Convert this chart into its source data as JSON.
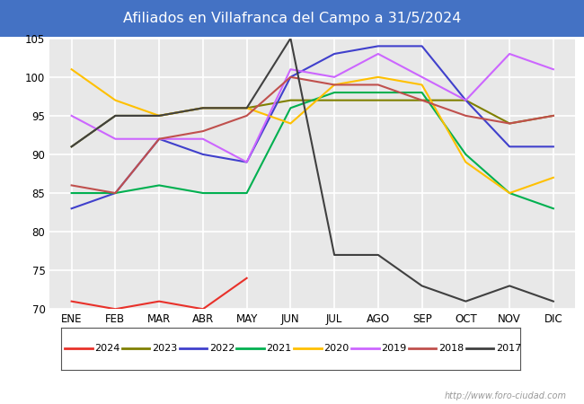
{
  "title": "Afiliados en Villafranca del Campo a 31/5/2024",
  "months": [
    "ENE",
    "FEB",
    "MAR",
    "ABR",
    "MAY",
    "JUN",
    "JUL",
    "AGO",
    "SEP",
    "OCT",
    "NOV",
    "DIC"
  ],
  "ylim": [
    70,
    105
  ],
  "yticks": [
    70,
    75,
    80,
    85,
    90,
    95,
    100,
    105
  ],
  "series_order": [
    "2024",
    "2023",
    "2022",
    "2021",
    "2020",
    "2019",
    "2018",
    "2017"
  ],
  "series": {
    "2024": {
      "color": "#e8312a",
      "values": [
        71,
        70,
        71,
        70,
        74,
        null,
        null,
        null,
        null,
        null,
        null,
        null
      ]
    },
    "2023": {
      "color": "#808000",
      "values": [
        91,
        95,
        95,
        96,
        96,
        97,
        97,
        97,
        97,
        97,
        94,
        95
      ]
    },
    "2022": {
      "color": "#4040cc",
      "values": [
        83,
        85,
        92,
        90,
        89,
        100,
        103,
        104,
        104,
        97,
        91,
        91
      ]
    },
    "2021": {
      "color": "#00b050",
      "values": [
        85,
        85,
        86,
        85,
        85,
        96,
        98,
        98,
        98,
        90,
        85,
        83
      ]
    },
    "2020": {
      "color": "#ffc000",
      "values": [
        101,
        97,
        95,
        96,
        96,
        94,
        99,
        100,
        99,
        89,
        85,
        87
      ]
    },
    "2019": {
      "color": "#cc66ff",
      "values": [
        95,
        92,
        92,
        92,
        89,
        101,
        100,
        103,
        100,
        97,
        103,
        101
      ]
    },
    "2018": {
      "color": "#c0504d",
      "values": [
        86,
        85,
        92,
        93,
        95,
        100,
        99,
        99,
        97,
        95,
        94,
        95
      ]
    },
    "2017": {
      "color": "#404040",
      "values": [
        91,
        95,
        95,
        96,
        96,
        105,
        77,
        77,
        73,
        71,
        73,
        71
      ]
    }
  },
  "watermark": "http://www.foro-ciudad.com",
  "header_color": "#4472c4",
  "plot_bg": "#e8e8e8",
  "grid_color": "#ffffff"
}
